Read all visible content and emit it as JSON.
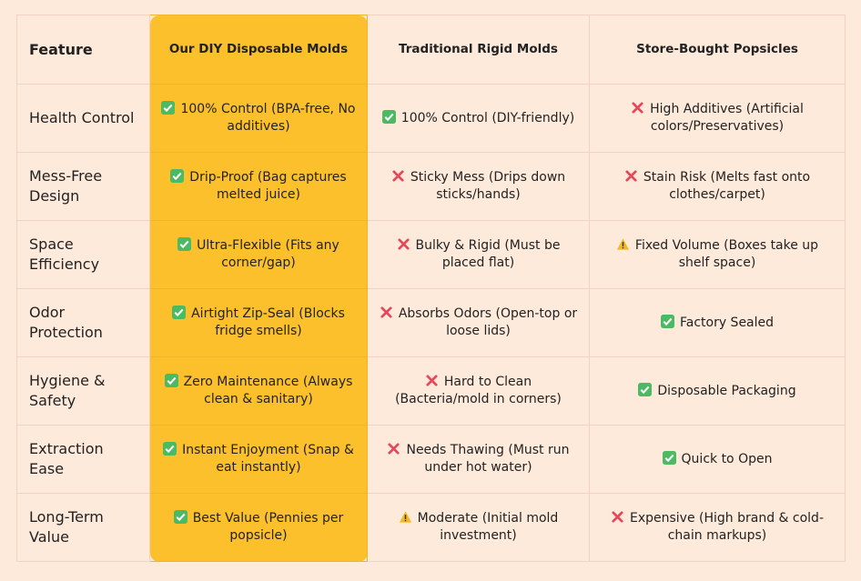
{
  "table": {
    "header": [
      "Feature",
      "Our DIY Disposable Molds",
      "Traditional Rigid Molds",
      "Store-Bought Popsicles"
    ],
    "rows": [
      [
        "Health Control",
        "100% Control (BPA-free, No additives)",
        "100% Control (DIY-friendly)",
        "High Additives (Artificial colors/Preservatives)"
      ],
      [
        "Mess-Free Design",
        "Drip-Proof (Bag captures melted juice)",
        "Sticky Mess (Drips down sticks/hands)",
        "Stain Risk (Melts fast onto clothes/carpet)"
      ],
      [
        "Space Efficiency",
        "Ultra-Flexible (Fits any corner/gap)",
        "Bulky & Rigid (Must be placed flat)",
        "Fixed Volume (Boxes take up shelf space)"
      ],
      [
        "Odor Protection",
        "Airtight Zip-Seal (Blocks fridge smells)",
        "Absorbs Odors (Open-top or loose lids)",
        "Factory Sealed"
      ],
      [
        "Hygiene & Safety",
        "Zero Maintenance (Always clean & sanitary)",
        "Hard to Clean (Bacteria/mold in corners)",
        "Disposable Packaging"
      ],
      [
        "Extraction Ease",
        "Instant Enjoyment (Snap & eat instantly)",
        "Needs Thawing (Must run under hot water)",
        "Quick to Open"
      ],
      [
        "Long-Term Value",
        "Best Value (Pennies per popsicle)",
        "Moderate (Initial mold investment)",
        "Expensive (High brand & cold-chain markups)"
      ]
    ]
  }
}
